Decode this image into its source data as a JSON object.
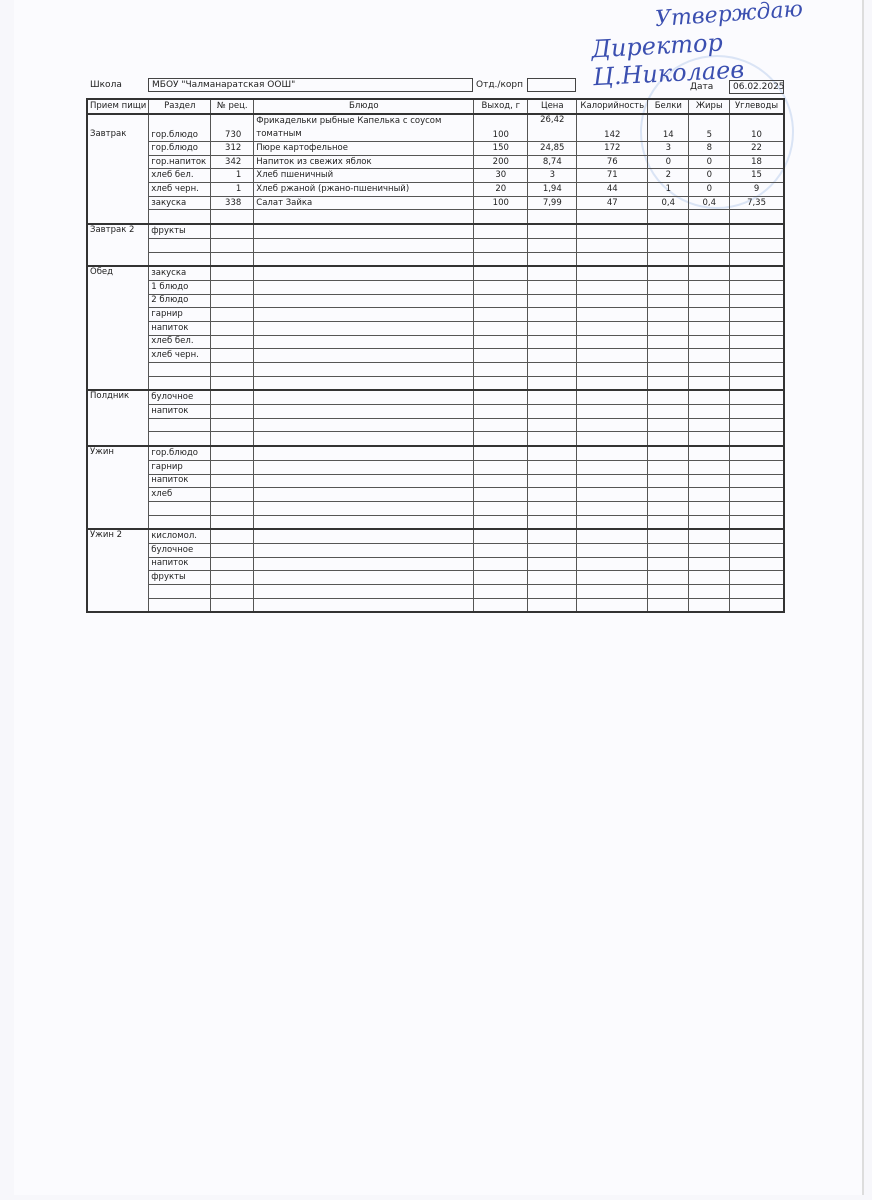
{
  "signature": {
    "line1": "Утверждаю",
    "line2": "Директор Ц.Николаев"
  },
  "header": {
    "school_label": "Школа",
    "school_value": "МБОУ \"Чалманаратская ООШ\"",
    "dept_label": "Отд./корп",
    "dept_value": "",
    "date_label": "Дата",
    "date_value": "06.02.2025"
  },
  "columns": [
    "Прием пищи",
    "Раздел",
    "№ рец.",
    "Блюдо",
    "Выход, г",
    "Цена",
    "Калорийность",
    "Белки",
    "Жиры",
    "Углеводы"
  ],
  "meals": [
    {
      "name": "Завтрак",
      "rows": [
        [
          "гор.блюдо",
          "730",
          "Фрикадельки рыбные Капелька с соусом томатным",
          "100",
          "26,42",
          "142",
          "14",
          "5",
          "10"
        ],
        [
          "гор.блюдо",
          "312",
          "Пюре картофельное",
          "150",
          "24,85",
          "172",
          "3",
          "8",
          "22"
        ],
        [
          "гор.напиток",
          "342",
          "Напиток из свежих яблок",
          "200",
          "8,74",
          "76",
          "0",
          "0",
          "18"
        ],
        [
          "хлеб бел.",
          "1",
          "Хлеб пшеничный",
          "30",
          "3",
          "71",
          "2",
          "0",
          "15"
        ],
        [
          "хлеб черн.",
          "1",
          "Хлеб ржаной (ржано-пшеничный)",
          "20",
          "1,94",
          "44",
          "1",
          "0",
          "9"
        ],
        [
          "закуска",
          "338",
          "Салат Зайка",
          "100",
          "7,99",
          "47",
          "0,4",
          "0,4",
          "7,35"
        ],
        [
          "",
          "",
          "",
          "",
          "",
          "",
          "",
          "",
          ""
        ]
      ]
    },
    {
      "name": "Завтрак 2",
      "rows": [
        [
          "фрукты"
        ],
        [
          ""
        ],
        [
          ""
        ]
      ]
    },
    {
      "name": "Обед",
      "rows": [
        [
          "закуска"
        ],
        [
          "1 блюдо"
        ],
        [
          "2 блюдо"
        ],
        [
          "гарнир"
        ],
        [
          "напиток"
        ],
        [
          "хлеб бел."
        ],
        [
          "хлеб черн."
        ],
        [
          ""
        ],
        [
          ""
        ]
      ]
    },
    {
      "name": "Полдник",
      "rows": [
        [
          "булочное"
        ],
        [
          "напиток"
        ],
        [
          ""
        ],
        [
          ""
        ]
      ]
    },
    {
      "name": "Ужин",
      "rows": [
        [
          "гор.блюдо"
        ],
        [
          "гарнир"
        ],
        [
          "напиток"
        ],
        [
          "хлеб"
        ],
        [
          ""
        ],
        [
          ""
        ]
      ]
    },
    {
      "name": "Ужин 2",
      "rows": [
        [
          "кисломол."
        ],
        [
          "булочное"
        ],
        [
          "напиток"
        ],
        [
          "фрукты"
        ],
        [
          ""
        ],
        [
          ""
        ]
      ]
    }
  ]
}
